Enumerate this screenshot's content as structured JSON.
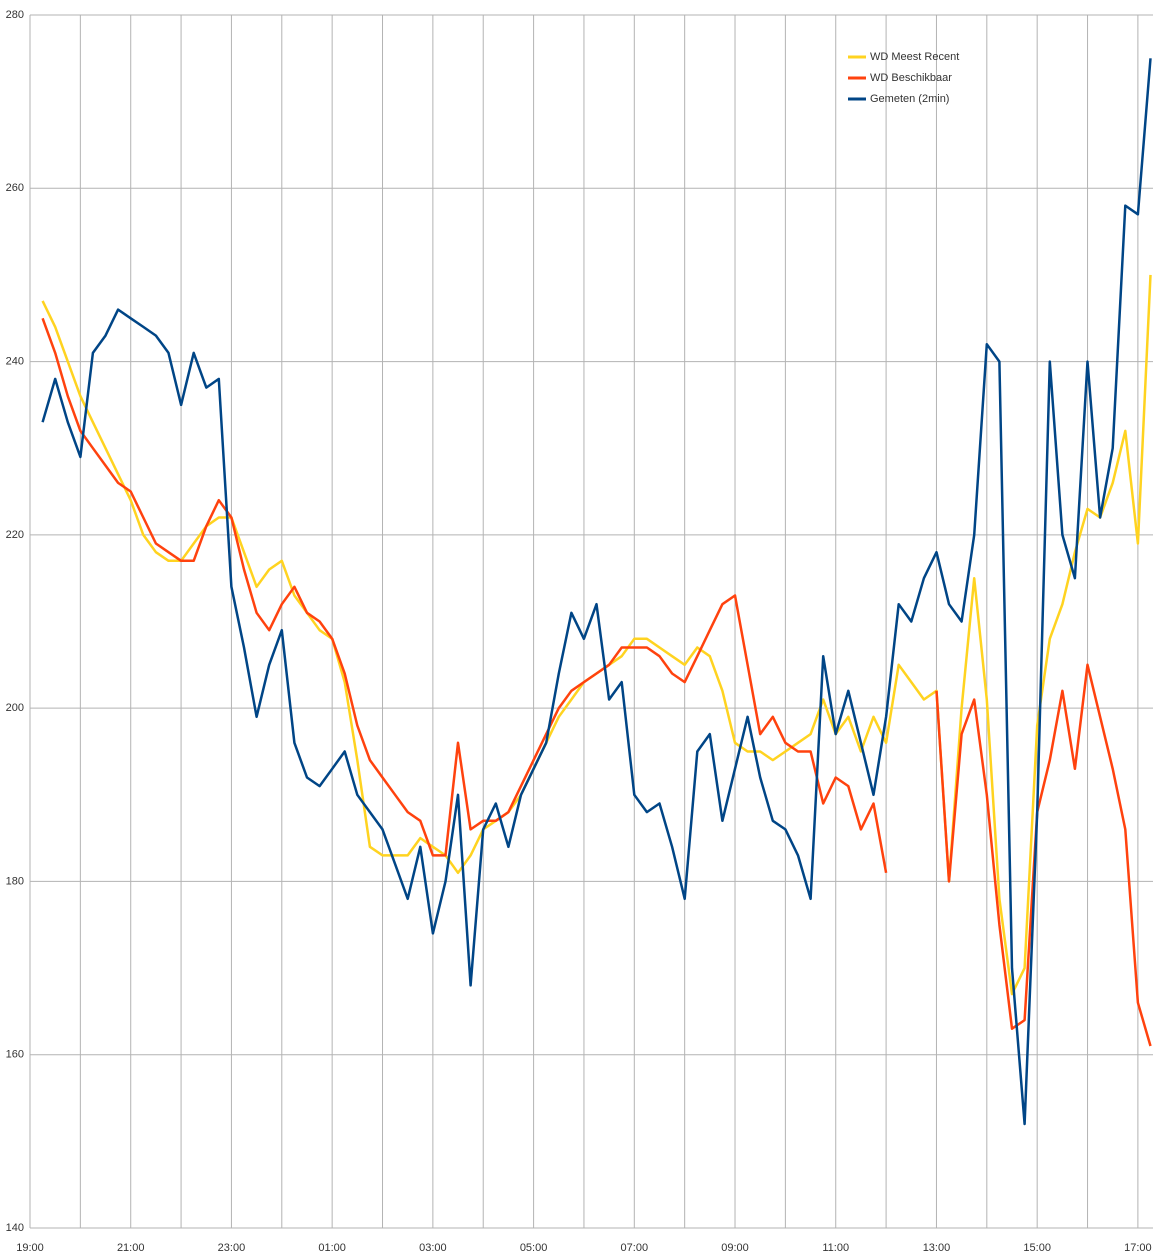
{
  "chart_data": {
    "type": "line",
    "x": [
      "19:15",
      "19:30",
      "19:45",
      "20:00",
      "20:15",
      "20:30",
      "20:45",
      "21:00",
      "21:15",
      "21:30",
      "21:45",
      "22:00",
      "22:15",
      "22:30",
      "22:45",
      "23:00",
      "23:15",
      "23:30",
      "23:45",
      "00:00",
      "00:15",
      "00:30",
      "00:45",
      "01:00",
      "01:15",
      "01:30",
      "01:45",
      "02:00",
      "02:15",
      "02:30",
      "02:45",
      "03:00",
      "03:15",
      "03:30",
      "03:45",
      "04:00",
      "04:15",
      "04:30",
      "04:45",
      "05:00",
      "05:15",
      "05:30",
      "05:45",
      "06:00",
      "06:15",
      "06:30",
      "06:45",
      "07:00",
      "07:15",
      "07:30",
      "07:45",
      "08:00",
      "08:15",
      "08:30",
      "08:45",
      "09:00",
      "09:15",
      "09:30",
      "09:45",
      "10:00",
      "10:15",
      "10:30",
      "10:45",
      "11:00",
      "11:15",
      "11:30",
      "11:45",
      "12:00",
      "12:15",
      "12:30",
      "12:45",
      "13:00",
      "13:15",
      "13:30",
      "13:45",
      "14:00",
      "14:15",
      "14:30",
      "14:45",
      "15:00",
      "15:15",
      "15:30",
      "15:45",
      "16:00",
      "16:15",
      "16:30",
      "16:45",
      "17:00",
      "17:15"
    ],
    "series": [
      {
        "name": "WD Meest Recent",
        "color": "#ffd320",
        "values": [
          247,
          244,
          240,
          236,
          233,
          230,
          227,
          224,
          220,
          218,
          217,
          217,
          219,
          221,
          222,
          222,
          218,
          214,
          216,
          217,
          213,
          211,
          209,
          208,
          203,
          194,
          184,
          183,
          183,
          183,
          185,
          184,
          183,
          181,
          183,
          186,
          187,
          188,
          190,
          193,
          196,
          199,
          201,
          203,
          204,
          205,
          206,
          208,
          208,
          207,
          206,
          205,
          207,
          206,
          202,
          196,
          195,
          195,
          194,
          195,
          196,
          197,
          201,
          197,
          199,
          195,
          199,
          196,
          205,
          203,
          201,
          202,
          180,
          200,
          215,
          201,
          178,
          167,
          170,
          198,
          208,
          212,
          218,
          223,
          222,
          226,
          232,
          219,
          250
        ]
      },
      {
        "name": "WD Beschikbaar",
        "color": "#ff420e",
        "values": [
          245,
          241,
          236,
          232,
          230,
          228,
          226,
          225,
          222,
          219,
          218,
          217,
          217,
          221,
          224,
          222,
          216,
          211,
          209,
          212,
          214,
          211,
          210,
          208,
          204,
          198,
          194,
          192,
          190,
          188,
          187,
          183,
          183,
          196,
          186,
          187,
          187,
          188,
          191,
          194,
          197,
          200,
          202,
          203,
          204,
          205,
          207,
          207,
          207,
          206,
          204,
          203,
          206,
          209,
          212,
          213,
          205,
          197,
          199,
          196,
          195,
          195,
          189,
          192,
          191,
          186,
          189,
          181,
          null,
          null,
          null,
          202,
          180,
          197,
          201,
          190,
          175,
          163,
          164,
          188,
          194,
          202,
          193,
          205,
          199,
          193,
          186,
          166,
          161
        ]
      },
      {
        "name": "Gemeten (2min)",
        "color": "#004586",
        "values": [
          233,
          238,
          233,
          229,
          241,
          243,
          246,
          245,
          244,
          243,
          241,
          235,
          241,
          237,
          238,
          214,
          207,
          199,
          205,
          209,
          196,
          192,
          191,
          193,
          195,
          190,
          188,
          186,
          182,
          178,
          184,
          174,
          180,
          190,
          168,
          186,
          189,
          184,
          190,
          193,
          196,
          204,
          211,
          208,
          212,
          201,
          203,
          190,
          188,
          189,
          184,
          178,
          195,
          197,
          187,
          193,
          199,
          192,
          187,
          186,
          183,
          178,
          206,
          197,
          202,
          196,
          190,
          199,
          212,
          210,
          215,
          218,
          212,
          210,
          220,
          242,
          240,
          170,
          152,
          188,
          240,
          220,
          215,
          240,
          222,
          230,
          258,
          257,
          275
        ]
      }
    ],
    "xlim": [
      "19:00",
      "17:18"
    ],
    "xticks": [
      "19:00",
      "21:00",
      "23:00",
      "01:00",
      "03:00",
      "05:00",
      "07:00",
      "09:00",
      "11:00",
      "13:00",
      "15:00",
      "17:00"
    ],
    "ylim": [
      140,
      280
    ],
    "yticks": [
      140,
      160,
      180,
      200,
      220,
      240,
      260,
      280
    ],
    "grid": true,
    "legend": "upper right"
  }
}
